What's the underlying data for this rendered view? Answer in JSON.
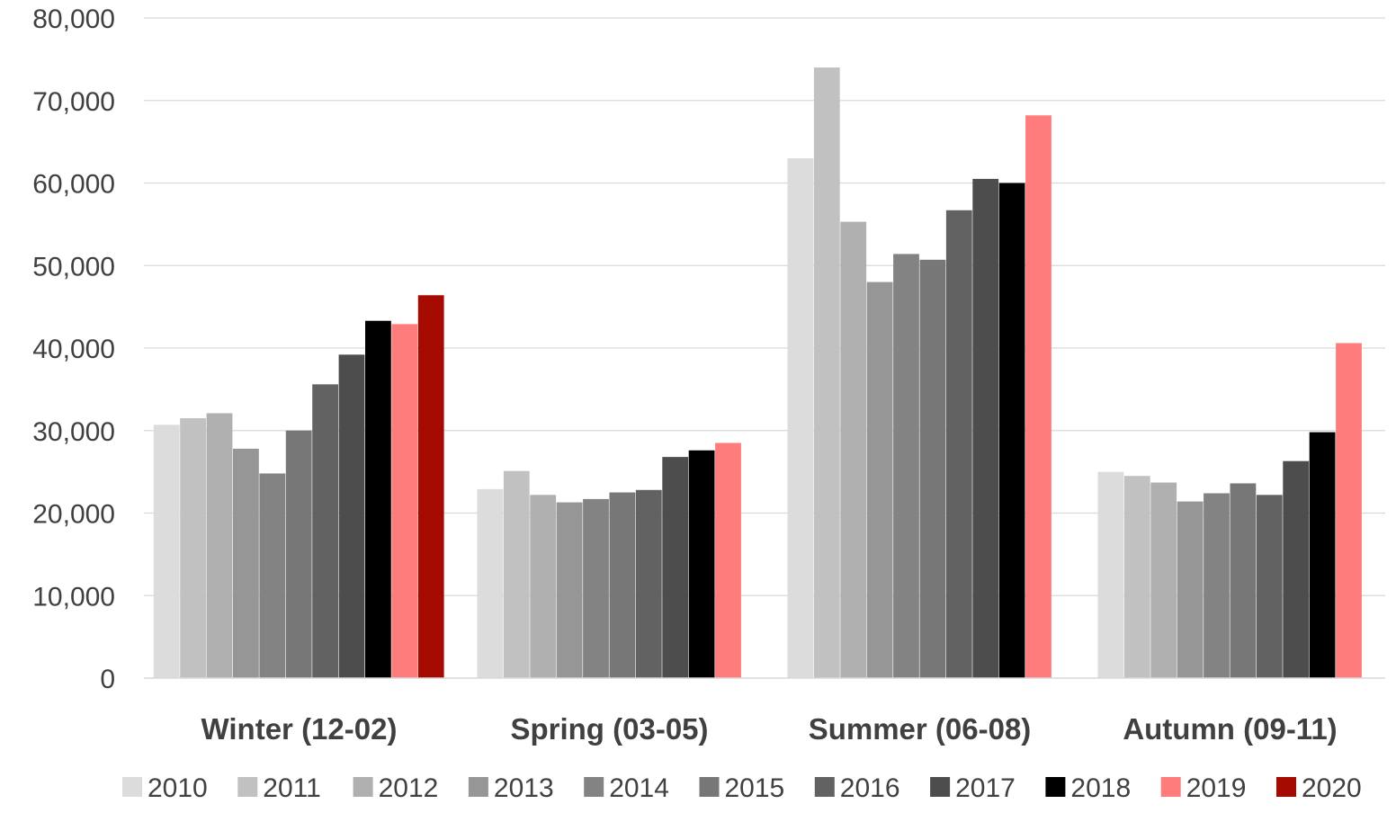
{
  "chart_data": {
    "type": "bar",
    "title": "",
    "xlabel": "",
    "ylabel": "",
    "ylim": [
      0,
      80000
    ],
    "yticks": [
      0,
      10000,
      20000,
      30000,
      40000,
      50000,
      60000,
      70000,
      80000
    ],
    "ytick_labels": [
      "0",
      "10,000",
      "20,000",
      "30,000",
      "40,000",
      "50,000",
      "60,000",
      "70,000",
      "80,000"
    ],
    "grid": true,
    "legend_position": "bottom",
    "categories": [
      "Winter (12-02)",
      "Spring (03-05)",
      "Summer (06-08)",
      "Autumn (09-11)"
    ],
    "series": [
      {
        "name": "2010",
        "color": "#dcdcdc",
        "values": [
          30700,
          22900,
          63000,
          25000
        ]
      },
      {
        "name": "2011",
        "color": "#c1c1c1",
        "values": [
          31500,
          25100,
          74000,
          24500
        ]
      },
      {
        "name": "2012",
        "color": "#b0b0b0",
        "values": [
          32100,
          22200,
          55300,
          23700
        ]
      },
      {
        "name": "2013",
        "color": "#969696",
        "values": [
          27800,
          21300,
          48000,
          21400
        ]
      },
      {
        "name": "2014",
        "color": "#838383",
        "values": [
          24800,
          21700,
          51400,
          22400
        ]
      },
      {
        "name": "2015",
        "color": "#777777",
        "values": [
          30000,
          22500,
          50700,
          23600
        ]
      },
      {
        "name": "2016",
        "color": "#626262",
        "values": [
          35600,
          22800,
          56700,
          22200
        ]
      },
      {
        "name": "2017",
        "color": "#4d4d4d",
        "values": [
          39200,
          26800,
          60500,
          26300
        ]
      },
      {
        "name": "2018",
        "color": "#000000",
        "values": [
          43300,
          27600,
          60000,
          29800
        ]
      },
      {
        "name": "2019",
        "color": "#ff7c7c",
        "values": [
          42900,
          28500,
          68200,
          40600
        ]
      },
      {
        "name": "2020",
        "color": "#a50b00",
        "values": [
          46400,
          null,
          null,
          null
        ]
      }
    ]
  }
}
